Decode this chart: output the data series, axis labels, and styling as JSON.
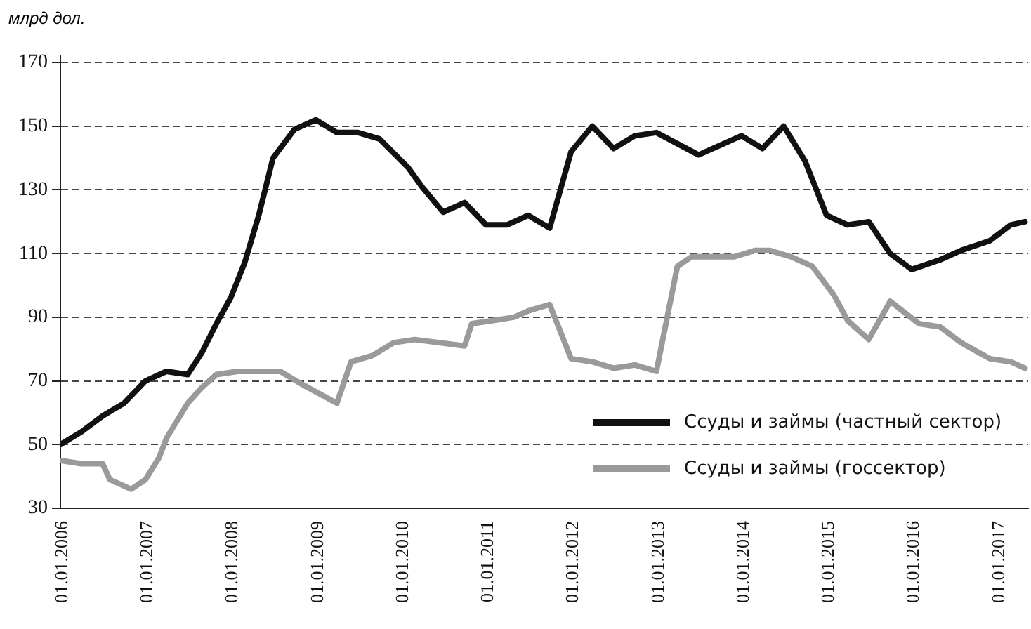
{
  "chart_data": {
    "type": "line",
    "ylabel": "млрд дол.",
    "xlim": [
      "2006-01-01",
      "2017-05-15"
    ],
    "xticks": [
      {
        "value": "2006-01-01",
        "label": "01.01.2006"
      },
      {
        "value": "2007-01-01",
        "label": "01.01.2007"
      },
      {
        "value": "2008-01-01",
        "label": "01.01.2008"
      },
      {
        "value": "2009-01-01",
        "label": "01.01.2009"
      },
      {
        "value": "2010-01-01",
        "label": "01.01.2010"
      },
      {
        "value": "2011-01-01",
        "label": "01.01.2011"
      },
      {
        "value": "2012-01-01",
        "label": "01.01.2012"
      },
      {
        "value": "2013-01-01",
        "label": "01.01.2013"
      },
      {
        "value": "2014-01-01",
        "label": "01.01.2014"
      },
      {
        "value": "2015-01-01",
        "label": "01.01.2015"
      },
      {
        "value": "2016-01-01",
        "label": "01.01.2016"
      },
      {
        "value": "2017-01-01",
        "label": "01.01.2017"
      }
    ],
    "ylim": [
      30,
      172
    ],
    "yticks": [
      30,
      50,
      70,
      90,
      110,
      130,
      150,
      170
    ],
    "grid": "y",
    "legend": "bottom right",
    "marker": "none",
    "line_style": "solid",
    "series": [
      {
        "name": "Ссуды и займы (частный сектор)",
        "color": "#111111",
        "x": [
          "2006-01",
          "2006-04",
          "2006-07",
          "2006-10",
          "2007-01",
          "2007-04",
          "2007-07",
          "2007-09",
          "2007-11",
          "2008-01",
          "2008-03",
          "2008-05",
          "2008-07",
          "2008-10",
          "2009-01",
          "2009-04",
          "2009-07",
          "2009-10",
          "2010-02",
          "2010-04",
          "2010-07",
          "2010-10",
          "2011-01",
          "2011-04",
          "2011-07",
          "2011-10",
          "2012-01",
          "2012-04",
          "2012-07",
          "2012-10",
          "2013-01",
          "2013-07",
          "2014-01",
          "2014-04",
          "2014-07",
          "2014-10",
          "2015-01",
          "2015-04",
          "2015-07",
          "2015-10",
          "2016-01",
          "2016-05",
          "2016-08",
          "2016-12",
          "2017-03",
          "2017-05"
        ],
        "values": [
          50,
          54,
          59,
          63,
          70,
          73,
          72,
          79,
          88,
          96,
          107,
          122,
          140,
          149,
          152,
          148,
          148,
          146,
          137,
          131,
          123,
          126,
          119,
          119,
          122,
          118,
          142,
          150,
          143,
          147,
          148,
          141,
          147,
          143,
          150,
          139,
          122,
          119,
          120,
          110,
          105,
          108,
          111,
          114,
          119,
          120
        ]
      },
      {
        "name": "Ссуды и займы (госсектор)",
        "color": "#9a9a9a",
        "x": [
          "2006-01",
          "2006-04",
          "2006-07",
          "2006-08",
          "2006-11",
          "2007-01",
          "2007-03",
          "2007-04",
          "2007-07",
          "2007-09",
          "2007-11",
          "2008-02",
          "2008-08",
          "2008-11",
          "2009-04",
          "2009-06",
          "2009-09",
          "2009-12",
          "2010-03",
          "2010-10",
          "2010-11",
          "2011-02",
          "2011-05",
          "2011-07",
          "2011-10",
          "2012-01",
          "2012-04",
          "2012-07",
          "2012-10",
          "2013-01",
          "2013-04",
          "2013-06",
          "2013-12",
          "2014-03",
          "2014-05",
          "2014-08",
          "2014-11",
          "2015-02",
          "2015-04",
          "2015-07",
          "2015-10",
          "2016-02",
          "2016-05",
          "2016-08",
          "2016-12",
          "2017-03",
          "2017-05"
        ],
        "values": [
          45,
          44,
          44,
          39,
          36,
          39,
          46,
          52,
          63,
          68,
          72,
          73,
          73,
          69,
          63,
          76,
          78,
          82,
          83,
          81,
          88,
          89,
          90,
          92,
          94,
          77,
          76,
          74,
          75,
          73,
          106,
          109,
          109,
          111,
          111,
          109,
          106,
          97,
          89,
          83,
          95,
          88,
          87,
          82,
          77,
          76,
          74
        ]
      }
    ]
  }
}
